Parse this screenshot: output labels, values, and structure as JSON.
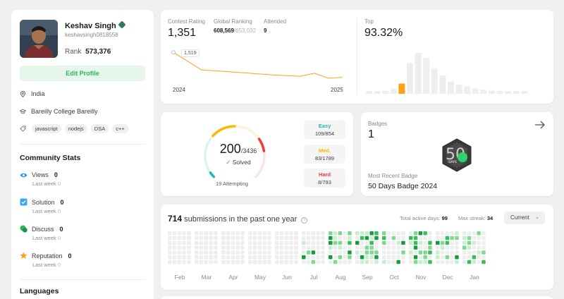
{
  "profile": {
    "name": "Keshav Singh",
    "username": "keshavsingh0818558",
    "rank_label": "Rank",
    "rank_value": "573,376",
    "edit_label": "Edit Profile",
    "location": "India",
    "school": "Bareilly College Bareilly",
    "tags": [
      "javascript",
      "nodejs",
      "DSA",
      "c++"
    ]
  },
  "community": {
    "title": "Community Stats",
    "stats": [
      {
        "label": "Views",
        "value": "0",
        "sub_label": "Last week",
        "sub_value": "0",
        "icon": "eye-icon",
        "color": "#1a8cff"
      },
      {
        "label": "Solution",
        "value": "0",
        "sub_label": "Last week",
        "sub_value": "0",
        "icon": "check-square-icon",
        "color": "#3ca6f0"
      },
      {
        "label": "Discuss",
        "value": "0",
        "sub_label": "Last week",
        "sub_value": "0",
        "icon": "chat-bubble-icon",
        "color": "#2cb55d"
      },
      {
        "label": "Reputation",
        "value": "0",
        "sub_label": "Last week",
        "sub_value": "0",
        "icon": "star-icon",
        "color": "#ffa116"
      }
    ]
  },
  "languages": {
    "title": "Languages"
  },
  "rating": {
    "contest_label": "Contest Rating",
    "contest_value": "1,351",
    "global_label": "Global Ranking",
    "global_value": "608,569",
    "global_total": "/653,032",
    "attended_label": "Attended",
    "attended_value": "9",
    "start_year": "2024",
    "end_year": "2025",
    "tooltip": "1,519",
    "top_label": "Top",
    "top_value": "93.32%",
    "line_values": [
      1519,
      1460,
      1400,
      1395,
      1388,
      1381,
      1374,
      1367,
      1362,
      1358,
      1378,
      1345,
      1351
    ],
    "histogram": [
      2,
      2,
      3,
      5,
      10,
      30,
      40,
      35,
      25,
      18,
      12,
      9,
      7,
      5,
      4,
      3,
      3,
      2,
      2,
      2
    ],
    "histogram_highlight_index": 4,
    "accent": "#ffa116"
  },
  "solved": {
    "solved_value": "200",
    "total": "/3436",
    "solved_label": "Solved",
    "attempting": "19 Attempting",
    "difficulties": [
      {
        "label": "Easy",
        "value": "109/854",
        "color": "#1cbaba"
      },
      {
        "label": "Med.",
        "value": "83/1789",
        "color": "#ffb700"
      },
      {
        "label": "Hard",
        "value": "8/793",
        "color": "#f63737"
      }
    ],
    "easy_fraction": 0.13,
    "med_fraction": 0.5,
    "hard_fraction": 0.32
  },
  "badges": {
    "label": "Badges",
    "count": "1",
    "recent_label": "Most Recent Badge",
    "recent_name": "50 Days Badge 2024",
    "badge_text": "DAYS",
    "badge_number": "50"
  },
  "submissions": {
    "count": "714",
    "text": " submissions in the past one year",
    "active_label": "Total active days:",
    "active_value": "99",
    "streak_label": "Max streak:",
    "streak_value": "34",
    "current_label": "Current",
    "months": [
      "Feb",
      "Mar",
      "Apr",
      "May",
      "Jun",
      "Jul",
      "Aug",
      "Sep",
      "Oct",
      "Nov",
      "Dec",
      "Jan"
    ]
  }
}
